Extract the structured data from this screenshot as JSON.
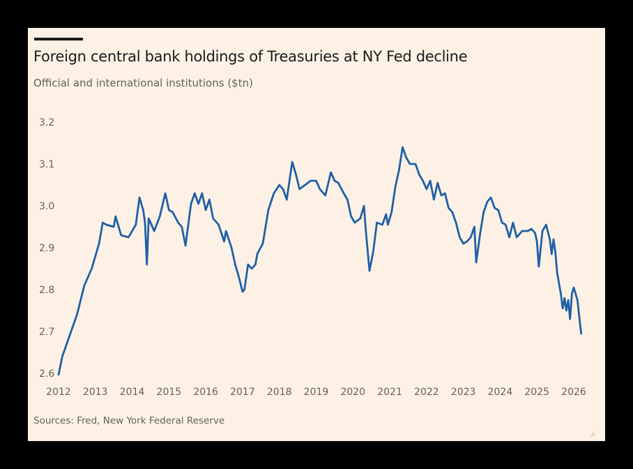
{
  "chart_data": {
    "type": "line",
    "title": "Foreign central bank holdings of Treasuries at NY Fed decline",
    "subtitle": "Official and international institutions ($tn)",
    "source": "Sources: Fred, New York Federal Reserve",
    "xlabel": "",
    "ylabel": "Official and international institutions ($tn)",
    "xlim": [
      2012,
      2026.3
    ],
    "ylim": [
      2.6,
      3.2
    ],
    "x_ticks": [
      "2012",
      "2013",
      "2014",
      "2015",
      "2016",
      "2017",
      "2018",
      "2019",
      "2020",
      "2021",
      "2022",
      "2023",
      "2024",
      "2025",
      "2026"
    ],
    "y_ticks": [
      "2.6",
      "2.7",
      "2.8",
      "2.9",
      "3.0",
      "3.1",
      "3.2"
    ],
    "grid": false,
    "legend": "none",
    "line_color": "#1f5fa6",
    "series": [
      {
        "name": "Official and international institutions",
        "x": [
          2012.0,
          2012.1,
          2012.3,
          2012.5,
          2012.7,
          2012.9,
          2013.1,
          2013.2,
          2013.3,
          2013.5,
          2013.55,
          2013.7,
          2013.9,
          2014.1,
          2014.2,
          2014.3,
          2014.35,
          2014.4,
          2014.45,
          2014.6,
          2014.75,
          2014.9,
          2015.0,
          2015.1,
          2015.25,
          2015.35,
          2015.45,
          2015.6,
          2015.7,
          2015.8,
          2015.9,
          2016.0,
          2016.1,
          2016.2,
          2016.35,
          2016.5,
          2016.55,
          2016.7,
          2016.8,
          2016.9,
          2017.0,
          2017.05,
          2017.15,
          2017.25,
          2017.35,
          2017.4,
          2017.55,
          2017.7,
          2017.85,
          2018.0,
          2018.1,
          2018.2,
          2018.35,
          2018.45,
          2018.55,
          2018.7,
          2018.85,
          2019.0,
          2019.1,
          2019.25,
          2019.4,
          2019.5,
          2019.6,
          2019.75,
          2019.85,
          2019.95,
          2020.05,
          2020.2,
          2020.3,
          2020.35,
          2020.45,
          2020.55,
          2020.65,
          2020.8,
          2020.9,
          2020.95,
          2021.05,
          2021.15,
          2021.25,
          2021.35,
          2021.45,
          2021.55,
          2021.7,
          2021.8,
          2021.9,
          2022.0,
          2022.1,
          2022.2,
          2022.3,
          2022.4,
          2022.5,
          2022.6,
          2022.7,
          2022.8,
          2022.9,
          2023.0,
          2023.1,
          2023.2,
          2023.3,
          2023.35,
          2023.45,
          2023.55,
          2023.65,
          2023.75,
          2023.85,
          2023.95,
          2024.05,
          2024.15,
          2024.25,
          2024.35,
          2024.45,
          2024.6,
          2024.75,
          2024.85,
          2024.95,
          2025.0,
          2025.05,
          2025.15,
          2025.25,
          2025.35,
          2025.4,
          2025.45,
          2025.5,
          2025.55,
          2025.65,
          2025.7,
          2025.75,
          2025.8,
          2025.85,
          2025.9,
          2025.95,
          2026.0,
          2026.1,
          2026.2
        ],
        "values": [
          2.597,
          2.64,
          2.69,
          2.74,
          2.81,
          2.85,
          2.91,
          2.96,
          2.955,
          2.95,
          2.975,
          2.93,
          2.925,
          2.955,
          3.02,
          2.99,
          2.96,
          2.86,
          2.97,
          2.94,
          2.975,
          3.03,
          2.99,
          2.985,
          2.96,
          2.95,
          2.905,
          3.005,
          3.03,
          3.005,
          3.03,
          2.99,
          3.015,
          2.97,
          2.955,
          2.915,
          2.94,
          2.9,
          2.86,
          2.83,
          2.795,
          2.8,
          2.86,
          2.85,
          2.86,
          2.885,
          2.91,
          2.99,
          3.03,
          3.05,
          3.04,
          3.015,
          3.105,
          3.075,
          3.04,
          3.05,
          3.06,
          3.06,
          3.04,
          3.025,
          3.08,
          3.06,
          3.055,
          3.03,
          3.015,
          2.975,
          2.96,
          2.97,
          3.0,
          2.94,
          2.845,
          2.89,
          2.96,
          2.955,
          2.98,
          2.955,
          2.985,
          3.045,
          3.085,
          3.14,
          3.115,
          3.1,
          3.1,
          3.075,
          3.06,
          3.04,
          3.06,
          3.015,
          3.055,
          3.025,
          3.03,
          2.995,
          2.985,
          2.96,
          2.925,
          2.91,
          2.915,
          2.925,
          2.95,
          2.865,
          2.93,
          2.985,
          3.01,
          3.02,
          2.995,
          2.99,
          2.96,
          2.955,
          2.925,
          2.96,
          2.925,
          2.94,
          2.94,
          2.945,
          2.935,
          2.915,
          2.855,
          2.94,
          2.955,
          2.92,
          2.885,
          2.92,
          2.89,
          2.84,
          2.79,
          2.755,
          2.78,
          2.75,
          2.775,
          2.73,
          2.79,
          2.805,
          2.775,
          2.695
        ]
      }
    ]
  },
  "decor": {
    "top_rule": "ft-top-rule",
    "resize_icon": "resize-grip-icon"
  }
}
